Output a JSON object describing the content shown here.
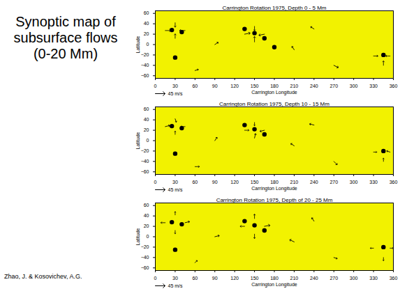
{
  "slide": {
    "title": "Synoptic map of subsurface flows (0-20 Mm)",
    "credit": "Zhao, J. & Kosovichev, A.G."
  },
  "chart_data": [
    {
      "type": "vector_field",
      "title": "Carrington Rotation 1975, Depth 0 - 5 Mm",
      "x_label": "Carrington Longitude",
      "y_label": "Latitude",
      "xlim": [
        0,
        360
      ],
      "ylim": [
        -65,
        65
      ],
      "xticks": [
        0,
        30,
        60,
        90,
        120,
        150,
        180,
        210,
        240,
        270,
        300,
        330,
        360
      ],
      "yticks": [
        -60,
        -40,
        -20,
        0,
        20,
        40,
        60
      ],
      "vector_scale": {
        "value": 45,
        "label": "45 m/s"
      },
      "vectors": [
        [
          15,
          27,
          25,
          0
        ],
        [
          45,
          27,
          -25,
          0
        ],
        [
          30,
          42,
          0,
          -20
        ],
        [
          30,
          12,
          0,
          20
        ],
        [
          135,
          20,
          25,
          5
        ],
        [
          165,
          20,
          -25,
          -5
        ],
        [
          150,
          35,
          0,
          -20
        ],
        [
          150,
          5,
          0,
          25
        ],
        [
          330,
          -22,
          20,
          0
        ],
        [
          355,
          -22,
          -20,
          0
        ],
        [
          345,
          -40,
          0,
          20
        ],
        [
          90,
          0,
          15,
          10
        ],
        [
          240,
          30,
          -15,
          10
        ],
        [
          270,
          -40,
          20,
          -10
        ],
        [
          210,
          -10,
          -10,
          15
        ],
        [
          60,
          -50,
          15,
          5
        ]
      ],
      "features": {
        "x": [
          25,
          40,
          135,
          150,
          165,
          180,
          345,
          30
        ],
        "y": [
          28,
          24,
          30,
          22,
          12,
          -5,
          -20,
          -25
        ],
        "color": "#000000"
      }
    },
    {
      "type": "vector_field",
      "title": "Carrington Rotation 1975, Depth 10 - 15 Mm",
      "x_label": "Carrington Longitude",
      "y_label": "Latitude",
      "xlim": [
        0,
        360
      ],
      "ylim": [
        -65,
        65
      ],
      "xticks": [
        0,
        30,
        60,
        90,
        120,
        150,
        180,
        210,
        240,
        270,
        300,
        330,
        360
      ],
      "yticks": [
        -60,
        -40,
        -20,
        0,
        20,
        40,
        60
      ],
      "vector_scale": {
        "value": 45,
        "label": "45 m/s"
      },
      "vectors": [
        [
          15,
          27,
          20,
          5
        ],
        [
          45,
          27,
          -20,
          0
        ],
        [
          30,
          42,
          5,
          -15
        ],
        [
          30,
          12,
          0,
          15
        ],
        [
          135,
          20,
          20,
          0
        ],
        [
          165,
          20,
          -20,
          -5
        ],
        [
          150,
          35,
          0,
          -15
        ],
        [
          150,
          5,
          5,
          20
        ],
        [
          330,
          -22,
          15,
          0
        ],
        [
          355,
          -22,
          -15,
          5
        ],
        [
          345,
          -40,
          0,
          15
        ],
        [
          90,
          0,
          10,
          15
        ],
        [
          240,
          30,
          -20,
          5
        ],
        [
          270,
          -40,
          15,
          -15
        ],
        [
          210,
          -10,
          -15,
          10
        ],
        [
          60,
          -50,
          20,
          0
        ]
      ],
      "features": {
        "x": [
          25,
          40,
          135,
          150,
          165,
          345,
          30
        ],
        "y": [
          28,
          24,
          30,
          22,
          12,
          -20,
          -25
        ],
        "color": "#000000"
      }
    },
    {
      "type": "vector_field",
      "title": "Carrington Rotation 1975, Depth of 20 - 25 Mm",
      "x_label": "Carrington Longitude",
      "y_label": "Latitude",
      "xlim": [
        0,
        360
      ],
      "ylim": [
        -65,
        65
      ],
      "xticks": [
        0,
        30,
        60,
        90,
        120,
        150,
        180,
        210,
        240,
        270,
        300,
        330,
        360
      ],
      "yticks": [
        -60,
        -40,
        -20,
        0,
        20,
        40,
        60
      ],
      "vector_scale": {
        "value": 45,
        "label": "45 m/s"
      },
      "vectors": [
        [
          15,
          27,
          -20,
          0
        ],
        [
          45,
          27,
          20,
          5
        ],
        [
          30,
          42,
          0,
          15
        ],
        [
          30,
          12,
          0,
          -15
        ],
        [
          135,
          20,
          -20,
          0
        ],
        [
          165,
          20,
          25,
          5
        ],
        [
          150,
          35,
          0,
          20
        ],
        [
          150,
          5,
          0,
          -20
        ],
        [
          330,
          -22,
          -15,
          0
        ],
        [
          355,
          -22,
          15,
          0
        ],
        [
          345,
          -40,
          0,
          -15
        ],
        [
          90,
          0,
          20,
          5
        ],
        [
          240,
          30,
          -10,
          15
        ],
        [
          270,
          -40,
          15,
          -5
        ],
        [
          210,
          -10,
          -20,
          10
        ],
        [
          60,
          -50,
          10,
          10
        ]
      ],
      "features": {
        "x": [
          25,
          40,
          135,
          150,
          165,
          345,
          30
        ],
        "y": [
          28,
          24,
          30,
          22,
          12,
          -20,
          -25
        ],
        "color": "#000000"
      }
    }
  ]
}
